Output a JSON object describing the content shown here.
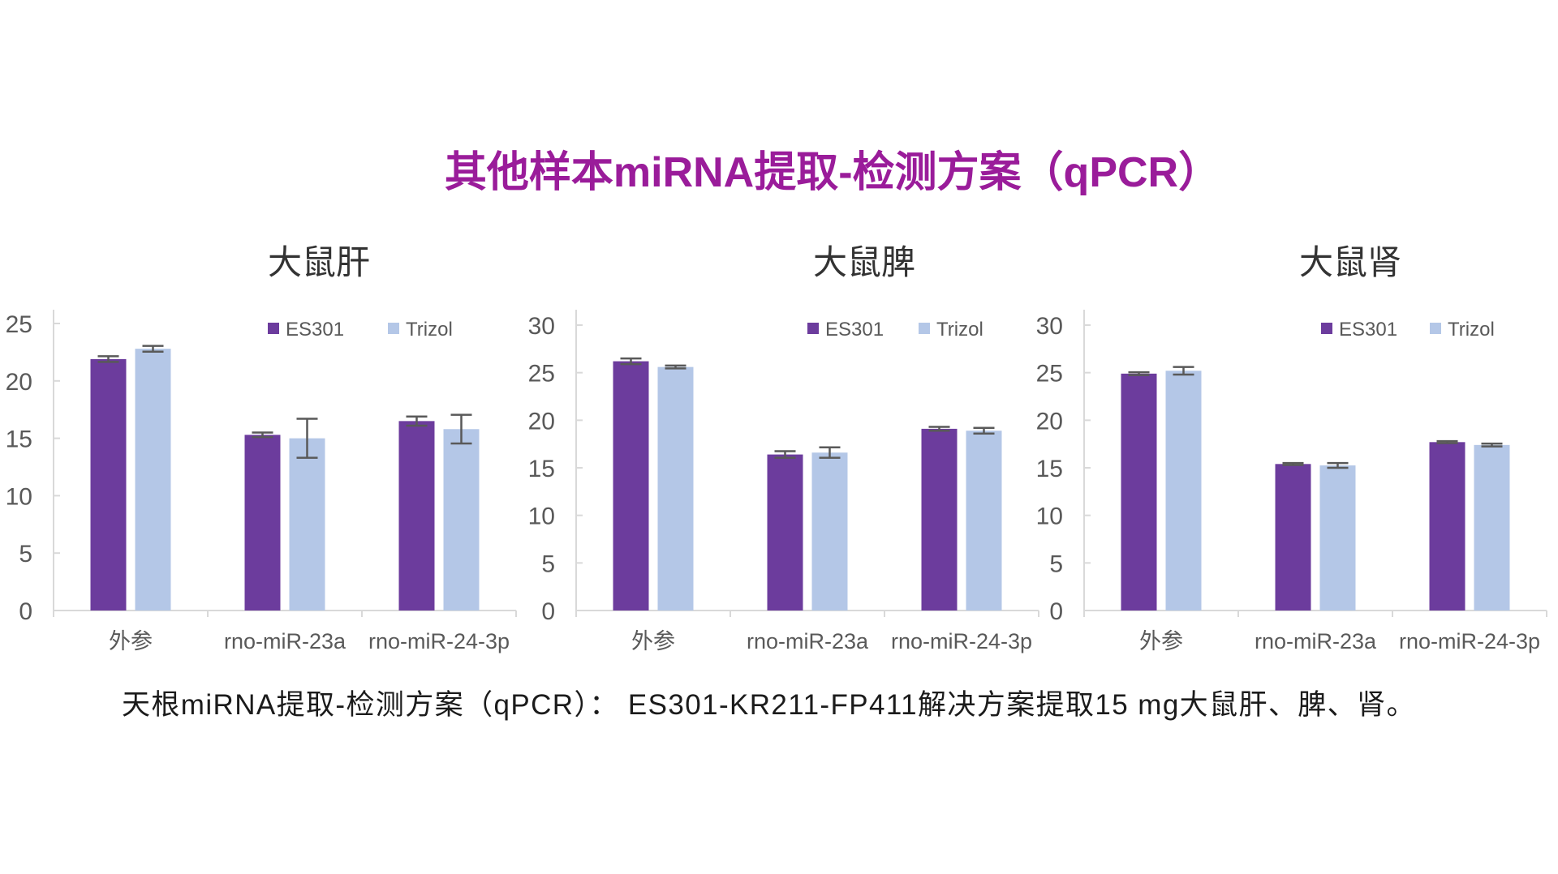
{
  "main_title": "其他样本miRNA提取-检测方案（qPCR）",
  "caption": "天根miRNA提取-检测方案（qPCR）： ES301-KR211-FP411解决方案提取15 mg大鼠肝、脾、肾。",
  "legend": {
    "series": [
      "ES301",
      "Trizol"
    ]
  },
  "colors": {
    "es301": "#6C3C9D",
    "trizol": "#B4C7E7",
    "error_bar": "#595959",
    "axis_line": "#D9D9D9",
    "axis_label": "#595959",
    "chart_title": "#333333",
    "main_title": "#9A1C9A",
    "caption": "#1b1b1b"
  },
  "chart_data": [
    {
      "type": "bar",
      "title": "大鼠肝",
      "categories": [
        "外参",
        "rno-miR-23a",
        "rno-miR-24-3p"
      ],
      "series": [
        {
          "name": "ES301",
          "values": [
            21.9,
            15.3,
            16.5
          ],
          "errors": [
            0.25,
            0.2,
            0.4
          ]
        },
        {
          "name": "Trizol",
          "values": [
            22.8,
            15.0,
            15.8
          ],
          "errors": [
            0.25,
            1.7,
            1.25
          ]
        }
      ],
      "ylim": [
        0,
        25
      ],
      "ytick_step": 5,
      "legend_position": "top-right",
      "grid": false
    },
    {
      "type": "bar",
      "title": "大鼠脾",
      "categories": [
        "外参",
        "rno-miR-23a",
        "rno-miR-24-3p"
      ],
      "series": [
        {
          "name": "ES301",
          "values": [
            26.2,
            16.4,
            19.1
          ],
          "errors": [
            0.3,
            0.35,
            0.2
          ]
        },
        {
          "name": "Trizol",
          "values": [
            25.6,
            16.6,
            18.9
          ],
          "errors": [
            0.15,
            0.55,
            0.3
          ]
        }
      ],
      "ylim": [
        0,
        30
      ],
      "ytick_step": 5,
      "legend_position": "top-right",
      "grid": false
    },
    {
      "type": "bar",
      "title": "大鼠肾",
      "categories": [
        "外参",
        "rno-miR-23a",
        "rno-miR-24-3p"
      ],
      "series": [
        {
          "name": "ES301",
          "values": [
            24.9,
            15.4,
            17.7
          ],
          "errors": [
            0.15,
            0.1,
            0.1
          ]
        },
        {
          "name": "Trizol",
          "values": [
            25.2,
            15.25,
            17.4
          ],
          "errors": [
            0.4,
            0.25,
            0.15
          ]
        }
      ],
      "ylim": [
        0,
        30
      ],
      "ytick_step": 5,
      "legend_position": "top-right",
      "grid": false
    }
  ]
}
